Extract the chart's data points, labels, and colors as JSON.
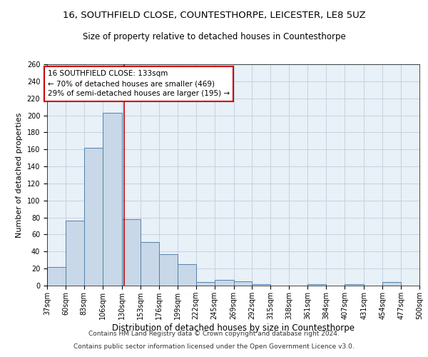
{
  "title1": "16, SOUTHFIELD CLOSE, COUNTESTHORPE, LEICESTER, LE8 5UZ",
  "title2": "Size of property relative to detached houses in Countesthorpe",
  "xlabel": "Distribution of detached houses by size in Countesthorpe",
  "ylabel": "Number of detached properties",
  "footer1": "Contains HM Land Registry data © Crown copyright and database right 2024.",
  "footer2": "Contains public sector information licensed under the Open Government Licence v3.0.",
  "bar_edges": [
    37,
    60,
    83,
    106,
    130,
    153,
    176,
    199,
    222,
    245,
    269,
    292,
    315,
    338,
    361,
    384,
    407,
    431,
    454,
    477,
    500
  ],
  "bar_heights": [
    22,
    76,
    162,
    203,
    78,
    51,
    37,
    25,
    4,
    7,
    5,
    2,
    0,
    0,
    2,
    0,
    2,
    0,
    4,
    0
  ],
  "bar_color": "#c8d8e8",
  "bar_edge_color": "#5580a8",
  "bar_linewidth": 0.7,
  "vline_x": 133,
  "vline_color": "#cc0000",
  "vline_linewidth": 1.2,
  "annotation_line1": "16 SOUTHFIELD CLOSE: 133sqm",
  "annotation_line2": "← 70% of detached houses are smaller (469)",
  "annotation_line3": "29% of semi-detached houses are larger (195) →",
  "annotation_box_color": "#ffffff",
  "annotation_box_edge": "#cc0000",
  "ylim": [
    0,
    260
  ],
  "yticks": [
    0,
    20,
    40,
    60,
    80,
    100,
    120,
    140,
    160,
    180,
    200,
    220,
    240,
    260
  ],
  "grid_color": "#c0ceda",
  "bg_color": "#e8f0f8",
  "title1_fontsize": 9.5,
  "title2_fontsize": 8.5,
  "xlabel_fontsize": 8.5,
  "ylabel_fontsize": 8,
  "tick_fontsize": 7,
  "annotation_fontsize": 7.5,
  "footer_fontsize": 6.5
}
